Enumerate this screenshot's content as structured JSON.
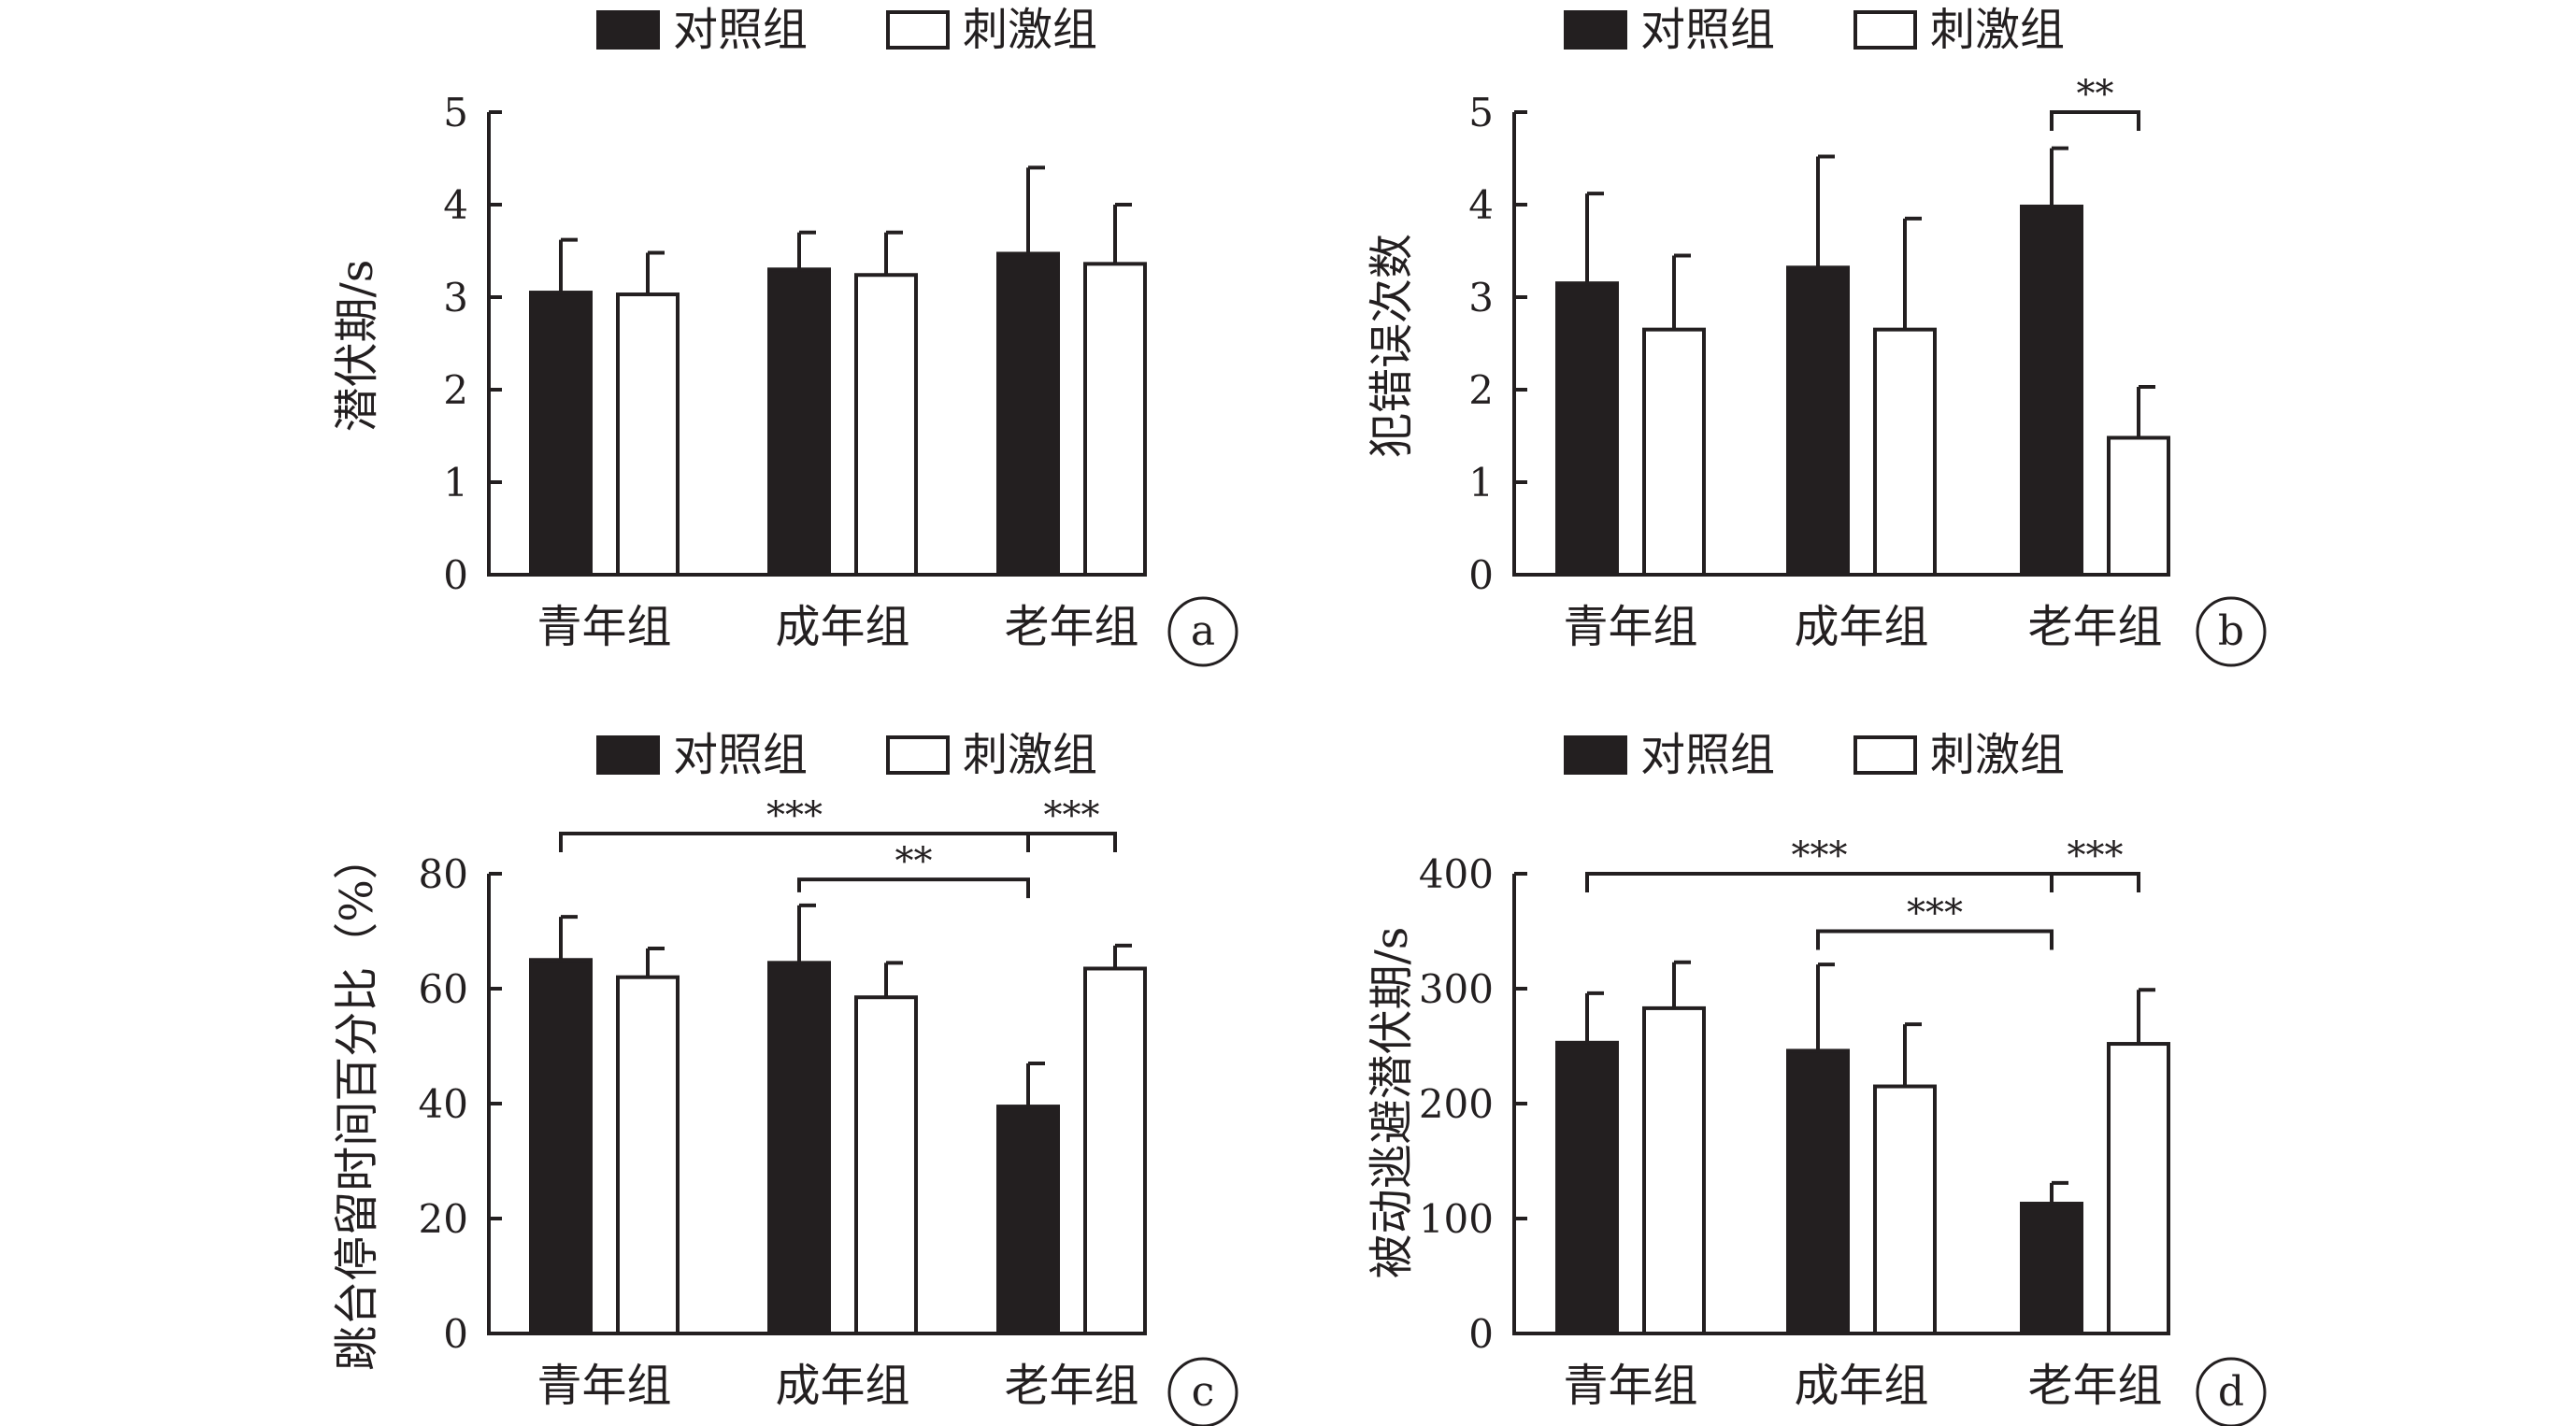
{
  "legend": {
    "control": "对照组",
    "stimulus": "刺激组"
  },
  "colors": {
    "control": "#231f20",
    "stimulus": "#ffffff",
    "stroke": "#231f20"
  },
  "chart_data": [
    {
      "panel": "a",
      "type": "bar",
      "ylabel": "潜伏期/s",
      "ylim": [
        0,
        5
      ],
      "yticks": [
        0,
        1,
        2,
        3,
        4,
        5
      ],
      "categories": [
        "青年组",
        "成年组",
        "老年组"
      ],
      "series": [
        {
          "name": "对照组",
          "values": [
            3.05,
            3.3,
            3.47
          ],
          "errors": [
            0.57,
            0.4,
            0.93
          ]
        },
        {
          "name": "刺激组",
          "values": [
            3.03,
            3.24,
            3.36
          ],
          "errors": [
            0.45,
            0.46,
            0.64
          ]
        }
      ],
      "significance": []
    },
    {
      "panel": "b",
      "type": "bar",
      "ylabel": "犯错误次数",
      "ylim": [
        0,
        5
      ],
      "yticks": [
        0,
        1,
        2,
        3,
        4,
        5
      ],
      "categories": [
        "青年组",
        "成年组",
        "老年组"
      ],
      "series": [
        {
          "name": "对照组",
          "values": [
            3.15,
            3.32,
            3.98
          ],
          "errors": [
            0.97,
            1.2,
            0.63
          ]
        },
        {
          "name": "刺激组",
          "values": [
            2.65,
            2.65,
            1.48
          ],
          "errors": [
            0.8,
            1.2,
            0.55
          ]
        }
      ],
      "significance": [
        {
          "label": "**",
          "from": [
            2,
            0
          ],
          "to": [
            2,
            1
          ],
          "y": 5.0
        }
      ]
    },
    {
      "panel": "c",
      "type": "bar",
      "ylabel": "跳台停留时间百分比（%）",
      "ylim": [
        0,
        80
      ],
      "yticks": [
        0,
        20,
        40,
        60,
        80
      ],
      "categories": [
        "青年组",
        "成年组",
        "老年组"
      ],
      "series": [
        {
          "name": "对照组",
          "values": [
            65,
            64.5,
            39.5
          ],
          "errors": [
            7.5,
            10,
            7.5
          ]
        },
        {
          "name": "刺激组",
          "values": [
            62,
            58.5,
            63.5
          ],
          "errors": [
            5,
            6,
            4
          ]
        }
      ],
      "significance": [
        {
          "label": "***",
          "from": [
            0,
            0
          ],
          "to": [
            2,
            0
          ],
          "y": 87
        },
        {
          "label": "***",
          "from": [
            2,
            0
          ],
          "to": [
            2,
            1
          ],
          "y": 87
        },
        {
          "label": "**",
          "from": [
            1,
            0
          ],
          "to": [
            2,
            0
          ],
          "y": 79
        }
      ]
    },
    {
      "panel": "d",
      "type": "bar",
      "ylabel": "被动逃避潜伏期/s",
      "ylim": [
        0,
        400
      ],
      "yticks": [
        0,
        100,
        200,
        300,
        400
      ],
      "categories": [
        "青年组",
        "成年组",
        "老年组"
      ],
      "series": [
        {
          "name": "对照组",
          "values": [
            253,
            246,
            113
          ],
          "errors": [
            43,
            75,
            18
          ]
        },
        {
          "name": "刺激组",
          "values": [
            283,
            215,
            252
          ],
          "errors": [
            40,
            54,
            47
          ]
        }
      ],
      "significance": [
        {
          "label": "***",
          "from": [
            0,
            0
          ],
          "to": [
            2,
            0
          ],
          "y": 400
        },
        {
          "label": "***",
          "from": [
            2,
            0
          ],
          "to": [
            2,
            1
          ],
          "y": 400
        },
        {
          "label": "***",
          "from": [
            1,
            0
          ],
          "to": [
            2,
            0
          ],
          "y": 350
        }
      ]
    }
  ]
}
